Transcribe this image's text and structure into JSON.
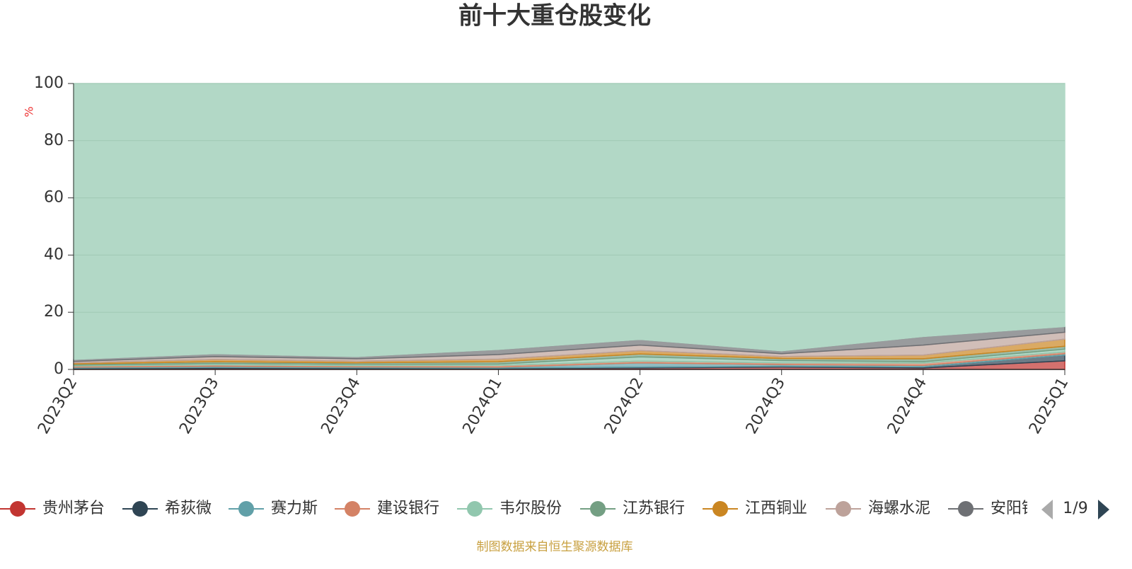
{
  "chart_data": {
    "type": "stacked-area",
    "title": "前十大重仓股变化",
    "y_label": "%",
    "categories": [
      "2023Q2",
      "2023Q3",
      "2023Q4",
      "2024Q1",
      "2024Q2",
      "2024Q3",
      "2024Q4",
      "2025Q1"
    ],
    "ylim": [
      0,
      100
    ],
    "yticks": [
      0,
      20,
      40,
      60,
      80,
      100
    ],
    "grid": true,
    "series": [
      {
        "name": "贵州茅台",
        "color": "#c23531",
        "values": [
          0.3,
          0.4,
          0.3,
          0.3,
          0.5,
          0.8,
          0.5,
          3.0
        ]
      },
      {
        "name": "希荻微",
        "color": "#2f4554",
        "values": [
          0.2,
          0.3,
          0.3,
          0.2,
          0.3,
          0.3,
          0.4,
          2.0
        ]
      },
      {
        "name": "赛力斯",
        "color": "#61a0a8",
        "values": [
          0.3,
          0.4,
          0.3,
          0.3,
          1.5,
          0.6,
          0.5,
          0.5
        ]
      },
      {
        "name": "建设银行",
        "color": "#d48265",
        "values": [
          0.4,
          0.5,
          0.4,
          0.6,
          0.6,
          0.6,
          0.8,
          0.6
        ]
      },
      {
        "name": "韦尔股份",
        "color": "#91c7ae",
        "values": [
          0.3,
          0.5,
          0.5,
          0.5,
          1.5,
          0.8,
          0.5,
          1.0
        ]
      },
      {
        "name": "江苏银行",
        "color": "#749f83",
        "values": [
          0.4,
          0.6,
          0.5,
          0.8,
          1.0,
          0.7,
          1.0,
          1.0
        ]
      },
      {
        "name": "江西铜业",
        "color": "#ca8622",
        "values": [
          0.4,
          0.8,
          0.6,
          0.9,
          1.2,
          0.7,
          1.3,
          2.5
        ]
      },
      {
        "name": "海螺水泥",
        "color": "#bda29a",
        "values": [
          0.5,
          1.0,
          0.8,
          1.6,
          1.9,
          1.0,
          3.5,
          2.4
        ]
      },
      {
        "name": "安阳钢铁",
        "color": "#6e7074",
        "values": [
          0.7,
          1.0,
          0.8,
          1.8,
          2.0,
          1.0,
          3.0,
          2.0
        ]
      },
      {
        "color": "#b2d8c6",
        "values": [
          96.5,
          94.5,
          95.5,
          93.0,
          89.5,
          93.5,
          88.5,
          85.0
        ]
      }
    ],
    "legend_page": "1/9",
    "source": "制图数据来自恒生聚源数据库"
  }
}
